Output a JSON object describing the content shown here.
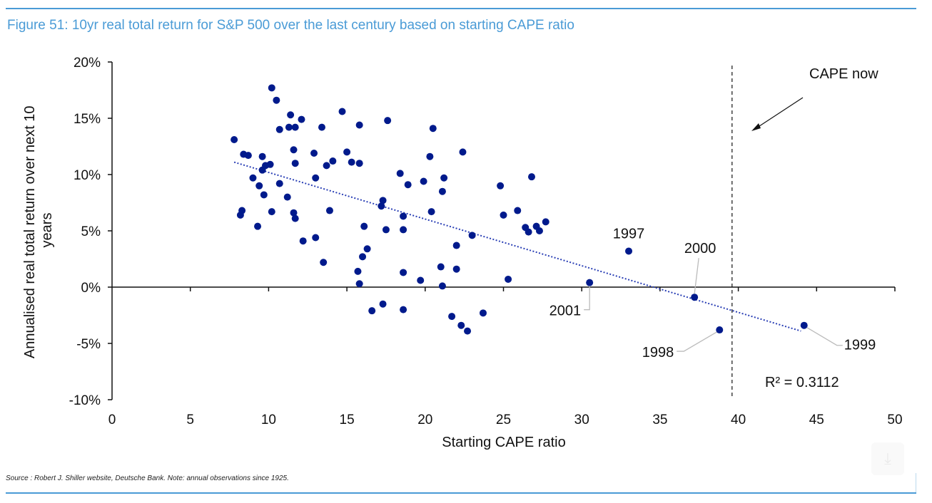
{
  "figure": {
    "title": "Figure 51: 10yr real total return for S&P 500 over the last century based on starting CAPE ratio",
    "source": "Source : Robert J. Shiller website, Deutsche Bank. Note: annual observations since 1925.",
    "accent_color": "#4a9bd6",
    "download_icon": "download-icon"
  },
  "chart_data": {
    "type": "scatter",
    "title": "10yr real total return for S&P 500 over the last century based on starting CAPE ratio",
    "xlabel": "Starting CAPE ratio",
    "ylabel_lines": [
      "Annualised real total return over next 10",
      "years"
    ],
    "xlim": [
      0,
      50
    ],
    "ylim": [
      -10,
      20
    ],
    "x_ticks": [
      0,
      5,
      10,
      15,
      20,
      25,
      30,
      35,
      40,
      45,
      50
    ],
    "x_tick_labels": [
      "0",
      "5",
      "10",
      "15",
      "20",
      "25",
      "30",
      "35",
      "40",
      "45",
      "50"
    ],
    "y_ticks": [
      20,
      15,
      10,
      5,
      0,
      -5,
      -10
    ],
    "y_tick_labels": [
      "20%",
      "15%",
      "10%",
      "5%",
      "0%",
      "-5%",
      "-10%"
    ],
    "grid": false,
    "point_color": "#001a8c",
    "series": [
      {
        "name": "Annual observations",
        "points": [
          [
            7.8,
            13.1
          ],
          [
            8.4,
            11.8
          ],
          [
            8.7,
            11.7
          ],
          [
            8.3,
            6.8
          ],
          [
            8.2,
            6.4
          ],
          [
            9.0,
            9.7
          ],
          [
            9.3,
            5.4
          ],
          [
            9.4,
            9.0
          ],
          [
            9.6,
            10.4
          ],
          [
            9.6,
            11.6
          ],
          [
            9.7,
            8.2
          ],
          [
            9.8,
            10.8
          ],
          [
            10.1,
            10.9
          ],
          [
            10.2,
            17.7
          ],
          [
            10.2,
            6.7
          ],
          [
            10.5,
            16.6
          ],
          [
            10.7,
            14.0
          ],
          [
            10.7,
            9.2
          ],
          [
            11.2,
            8.0
          ],
          [
            11.3,
            14.2
          ],
          [
            11.4,
            15.3
          ],
          [
            11.6,
            6.6
          ],
          [
            11.6,
            12.2
          ],
          [
            11.7,
            6.1
          ],
          [
            11.7,
            11.0
          ],
          [
            11.7,
            14.2
          ],
          [
            12.1,
            14.9
          ],
          [
            12.2,
            4.1
          ],
          [
            12.9,
            11.9
          ],
          [
            13.0,
            9.7
          ],
          [
            13.0,
            4.4
          ],
          [
            13.4,
            14.2
          ],
          [
            13.5,
            2.2
          ],
          [
            13.7,
            10.8
          ],
          [
            13.9,
            6.8
          ],
          [
            14.1,
            11.2
          ],
          [
            14.7,
            15.6
          ],
          [
            15.0,
            12.0
          ],
          [
            15.3,
            11.1
          ],
          [
            15.7,
            1.4
          ],
          [
            15.8,
            11.0
          ],
          [
            15.8,
            14.4
          ],
          [
            15.8,
            0.3
          ],
          [
            16.0,
            2.7
          ],
          [
            16.1,
            5.4
          ],
          [
            16.3,
            3.4
          ],
          [
            16.6,
            -2.1
          ],
          [
            17.2,
            7.2
          ],
          [
            17.3,
            -1.5
          ],
          [
            17.3,
            7.7
          ],
          [
            17.5,
            5.1
          ],
          [
            17.6,
            14.8
          ],
          [
            18.4,
            10.1
          ],
          [
            18.6,
            6.3
          ],
          [
            18.6,
            5.1
          ],
          [
            18.6,
            1.3
          ],
          [
            18.6,
            -2.0
          ],
          [
            18.9,
            9.1
          ],
          [
            19.7,
            0.6
          ],
          [
            19.9,
            9.4
          ],
          [
            20.3,
            11.6
          ],
          [
            20.4,
            6.7
          ],
          [
            20.5,
            14.1
          ],
          [
            21.0,
            1.8
          ],
          [
            21.1,
            0.1
          ],
          [
            21.1,
            8.5
          ],
          [
            21.2,
            9.7
          ],
          [
            21.7,
            -2.6
          ],
          [
            22.0,
            3.7
          ],
          [
            22.0,
            1.6
          ],
          [
            22.3,
            -3.4
          ],
          [
            22.4,
            12.0
          ],
          [
            22.7,
            -3.9
          ],
          [
            23.0,
            4.6
          ],
          [
            23.7,
            -2.3
          ],
          [
            24.8,
            9.0
          ],
          [
            25.0,
            6.4
          ],
          [
            25.3,
            0.7
          ],
          [
            25.9,
            6.8
          ],
          [
            26.4,
            5.3
          ],
          [
            26.6,
            4.9
          ],
          [
            26.8,
            9.8
          ],
          [
            27.1,
            5.4
          ],
          [
            27.3,
            5.0
          ],
          [
            27.7,
            5.8
          ],
          [
            30.5,
            0.4
          ],
          [
            33.0,
            3.2
          ],
          [
            37.2,
            -0.9
          ],
          [
            38.8,
            -3.8
          ],
          [
            44.2,
            -3.4
          ]
        ]
      }
    ],
    "labeled_points": [
      {
        "label": "1997",
        "x": 33.0,
        "y": 3.2
      },
      {
        "label": "2001",
        "x": 30.5,
        "y": 0.4
      },
      {
        "label": "2000",
        "x": 37.2,
        "y": -0.9
      },
      {
        "label": "1998",
        "x": 38.8,
        "y": -3.8
      },
      {
        "label": "1999",
        "x": 44.2,
        "y": -3.4
      }
    ],
    "trendline": {
      "type": "linear",
      "style": "dotted",
      "x_start": 7.8,
      "y_start": 11.1,
      "x_end": 44.0,
      "y_end": -3.9,
      "r_squared_label": "R² = 0.3112"
    },
    "reference_line": {
      "x": 39.6,
      "style": "dashed",
      "label": "CAPE now"
    }
  }
}
